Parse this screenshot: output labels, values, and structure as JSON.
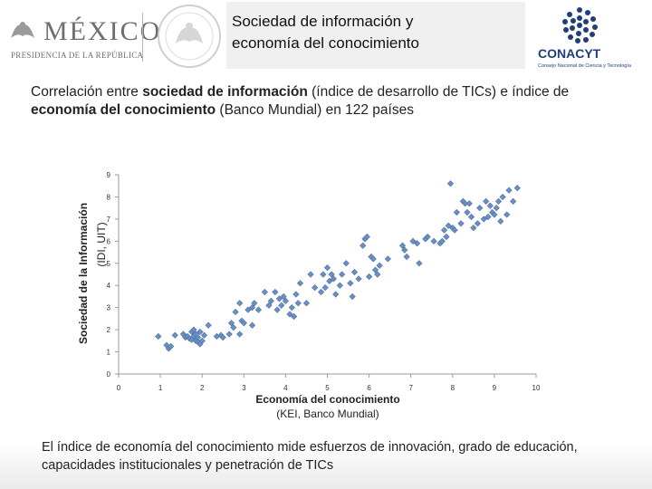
{
  "header": {
    "logo_main": "MÉXICO",
    "logo_sub": "PRESIDENCIA DE LA REPÚBLICA",
    "title_line1": "Sociedad de información y",
    "title_line2": "economía del conocimiento",
    "conacyt_name": "CONACYT",
    "conacyt_sub": "Consejo Nacional de Ciencia y Tecnología"
  },
  "intro": {
    "part1": "Correlación entre ",
    "bold1": "sociedad de información",
    "part2": " (índice de desarrollo de TICs) e índice de ",
    "bold2": "economía del conocimiento",
    "part3": " (Banco Mundial) en 122 países"
  },
  "caption": {
    "bold": "El índice de economía del conocimiento",
    "text": " mide esfuerzos de innovación, grado de educación, capacidades institucionales y penetración de TICs"
  },
  "chart_data": {
    "type": "scatter",
    "xlabel_line1": "Economía del conocimiento",
    "xlabel_line2": "(KEI, Banco Mundial)",
    "ylabel_line1": "Sociedad de la Información",
    "ylabel_line2": "(IDI, UIT)",
    "xlim": [
      0,
      10
    ],
    "ylim": [
      0,
      9
    ],
    "xticks": [
      "0",
      "1",
      "2",
      "3",
      "4",
      "5",
      "6",
      "7",
      "8",
      "9",
      "10"
    ],
    "yticks": [
      "0",
      "1",
      "2",
      "3",
      "4",
      "5",
      "6",
      "7",
      "8",
      "9"
    ],
    "marker_color": "#6b8fc0",
    "points": [
      [
        0.95,
        1.7
      ],
      [
        1.15,
        1.3
      ],
      [
        1.2,
        1.15
      ],
      [
        1.25,
        1.25
      ],
      [
        1.35,
        1.75
      ],
      [
        1.55,
        1.8
      ],
      [
        1.6,
        1.65
      ],
      [
        1.65,
        1.7
      ],
      [
        1.7,
        1.6
      ],
      [
        1.75,
        1.55
      ],
      [
        1.75,
        1.9
      ],
      [
        1.8,
        1.7
      ],
      [
        1.8,
        2.0
      ],
      [
        1.85,
        1.5
      ],
      [
        1.85,
        1.8
      ],
      [
        1.9,
        1.45
      ],
      [
        1.9,
        1.65
      ],
      [
        1.95,
        1.35
      ],
      [
        1.95,
        1.9
      ],
      [
        2.0,
        1.5
      ],
      [
        2.05,
        1.75
      ],
      [
        2.15,
        2.2
      ],
      [
        2.35,
        1.7
      ],
      [
        2.45,
        1.75
      ],
      [
        2.5,
        1.65
      ],
      [
        2.65,
        1.8
      ],
      [
        2.7,
        2.3
      ],
      [
        2.75,
        2.1
      ],
      [
        2.8,
        2.8
      ],
      [
        2.9,
        3.2
      ],
      [
        2.9,
        1.8
      ],
      [
        2.95,
        2.4
      ],
      [
        3.0,
        2.3
      ],
      [
        3.1,
        2.9
      ],
      [
        3.2,
        2.2
      ],
      [
        3.2,
        3.0
      ],
      [
        3.25,
        3.2
      ],
      [
        3.35,
        2.9
      ],
      [
        3.5,
        3.7
      ],
      [
        3.6,
        3.1
      ],
      [
        3.65,
        3.3
      ],
      [
        3.75,
        3.7
      ],
      [
        3.8,
        2.9
      ],
      [
        3.85,
        3.4
      ],
      [
        3.9,
        3.1
      ],
      [
        3.95,
        3.5
      ],
      [
        4.0,
        3.3
      ],
      [
        4.1,
        2.7
      ],
      [
        4.15,
        3.0
      ],
      [
        4.2,
        2.6
      ],
      [
        4.25,
        3.6
      ],
      [
        4.3,
        3.2
      ],
      [
        4.35,
        4.1
      ],
      [
        4.5,
        3.2
      ],
      [
        4.6,
        4.5
      ],
      [
        4.7,
        3.9
      ],
      [
        4.85,
        3.7
      ],
      [
        4.9,
        4.5
      ],
      [
        4.95,
        3.9
      ],
      [
        5.0,
        4.8
      ],
      [
        5.05,
        4.2
      ],
      [
        5.1,
        4.5
      ],
      [
        5.15,
        4.3
      ],
      [
        5.2,
        3.6
      ],
      [
        5.3,
        4.0
      ],
      [
        5.35,
        4.5
      ],
      [
        5.45,
        5.0
      ],
      [
        5.55,
        4.1
      ],
      [
        5.6,
        3.5
      ],
      [
        5.65,
        4.6
      ],
      [
        5.75,
        4.3
      ],
      [
        5.85,
        5.8
      ],
      [
        5.9,
        6.1
      ],
      [
        5.95,
        6.2
      ],
      [
        6.0,
        4.4
      ],
      [
        6.05,
        5.3
      ],
      [
        6.1,
        5.2
      ],
      [
        6.15,
        4.7
      ],
      [
        6.2,
        4.5
      ],
      [
        6.25,
        4.9
      ],
      [
        6.45,
        5.2
      ],
      [
        6.8,
        5.8
      ],
      [
        6.85,
        5.6
      ],
      [
        6.9,
        5.3
      ],
      [
        7.05,
        6.0
      ],
      [
        7.15,
        5.9
      ],
      [
        7.2,
        5.0
      ],
      [
        7.35,
        6.1
      ],
      [
        7.4,
        6.2
      ],
      [
        7.55,
        6.0
      ],
      [
        7.7,
        5.9
      ],
      [
        7.75,
        6.0
      ],
      [
        7.8,
        6.5
      ],
      [
        7.85,
        6.2
      ],
      [
        7.9,
        6.7
      ],
      [
        7.95,
        8.6
      ],
      [
        8.0,
        6.6
      ],
      [
        8.05,
        6.5
      ],
      [
        8.1,
        7.3
      ],
      [
        8.2,
        6.8
      ],
      [
        8.25,
        7.8
      ],
      [
        8.3,
        7.7
      ],
      [
        8.35,
        7.3
      ],
      [
        8.4,
        7.7
      ],
      [
        8.45,
        7.1
      ],
      [
        8.5,
        6.6
      ],
      [
        8.6,
        6.8
      ],
      [
        8.65,
        7.5
      ],
      [
        8.75,
        7.0
      ],
      [
        8.8,
        7.8
      ],
      [
        8.85,
        7.1
      ],
      [
        8.9,
        7.6
      ],
      [
        8.95,
        7.3
      ],
      [
        9.0,
        7.2
      ],
      [
        9.05,
        7.5
      ],
      [
        9.1,
        7.8
      ],
      [
        9.15,
        6.9
      ],
      [
        9.2,
        8.0
      ],
      [
        9.3,
        7.2
      ],
      [
        9.35,
        8.3
      ],
      [
        9.45,
        7.8
      ],
      [
        9.55,
        8.4
      ]
    ]
  }
}
